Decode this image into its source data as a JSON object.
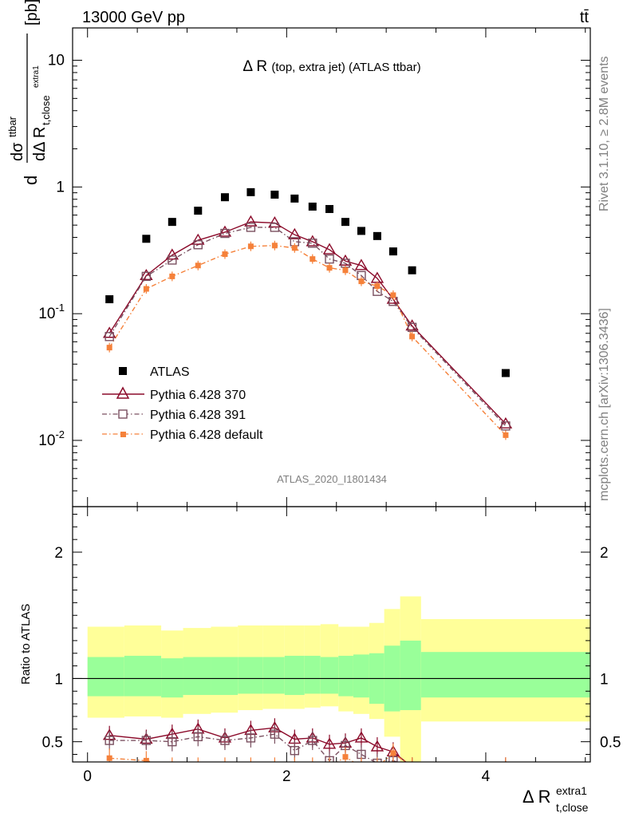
{
  "header": {
    "left": "13000 GeV pp",
    "right": "tt̄"
  },
  "side_labels": {
    "rivet": "Rivet 3.1.10, ≥ 2.8M events",
    "mcplots": "mcplots.cern.ch [arXiv:1306.3436]"
  },
  "colors": {
    "atlas": "#000000",
    "p370": "#8b0a2a",
    "p391": "#7a5060",
    "pdefault": "#f5813a",
    "band_yellow": "#ffff99",
    "band_green": "#99ff99"
  },
  "chart_data": [
    {
      "type": "scatter",
      "title_main": "Δ R",
      "title_sub": "(top, extra jet) (ATLAS ttbar)",
      "analysis_label": "ATLAS_2020_I1801434",
      "ylabel": "dσ^{ttbar} / dΔ R_{t,close}^{extra1} [pb]",
      "yscale": "log",
      "ylim": [
        0.003,
        18
      ],
      "xlim": [
        -0.15,
        5.05
      ],
      "y_tick_labels": [
        "10^{-2}",
        "10^{-1}",
        "1",
        "10"
      ],
      "legend": {
        "position": "bottom-left",
        "entries": [
          "ATLAS",
          "Pythia 6.428 370",
          "Pythia 6.428 391",
          "Pythia 6.428 default"
        ]
      },
      "x": [
        0.22,
        0.59,
        0.85,
        1.11,
        1.38,
        1.64,
        1.88,
        2.08,
        2.26,
        2.43,
        2.59,
        2.75,
        2.91,
        3.07,
        3.26,
        4.2
      ],
      "series": [
        {
          "name": "ATLAS",
          "marker": "square",
          "values": [
            0.13,
            0.39,
            0.53,
            0.65,
            0.83,
            0.91,
            0.87,
            0.81,
            0.7,
            0.67,
            0.53,
            0.45,
            0.41,
            0.31,
            0.22,
            0.034
          ]
        },
        {
          "name": "Pythia 6.428 370",
          "marker": "triangle",
          "line": "solid",
          "values": [
            0.07,
            0.2,
            0.29,
            0.38,
            0.44,
            0.53,
            0.52,
            0.42,
            0.37,
            0.32,
            0.26,
            0.24,
            0.19,
            0.13,
            0.08,
            0.0135
          ]
        },
        {
          "name": "Pythia 6.428 391",
          "marker": "open-square",
          "line": "dashdot",
          "values": [
            0.066,
            0.197,
            0.265,
            0.35,
            0.43,
            0.48,
            0.48,
            0.37,
            0.36,
            0.27,
            0.25,
            0.2,
            0.15,
            0.125,
            0.078,
            0.013
          ]
        },
        {
          "name": "Pythia 6.428 default",
          "marker": "filled-square",
          "line": "dashdot",
          "values": [
            0.054,
            0.157,
            0.197,
            0.24,
            0.295,
            0.34,
            0.345,
            0.33,
            0.27,
            0.23,
            0.22,
            0.18,
            0.165,
            0.14,
            0.066,
            0.011
          ]
        }
      ]
    },
    {
      "type": "scatter",
      "ylabel": "Ratio to ATLAS",
      "xlabel": "Δ R_{t,close}^{extra1}",
      "ylim": [
        0.34,
        2.36
      ],
      "xlim": [
        -0.15,
        5.05
      ],
      "x_tick_labels": [
        "0",
        "2",
        "4"
      ],
      "y_tick_labels": [
        "0.5",
        "1",
        "2"
      ],
      "bin_edges": [
        0.0,
        0.37,
        0.74,
        0.96,
        1.24,
        1.51,
        1.76,
        1.98,
        2.18,
        2.34,
        2.52,
        2.67,
        2.83,
        2.98,
        3.14,
        3.35,
        5.05
      ],
      "band_yellow": {
        "lo": [
          0.69,
          0.7,
          0.69,
          0.72,
          0.73,
          0.75,
          0.76,
          0.76,
          0.77,
          0.78,
          0.74,
          0.72,
          0.68,
          0.54,
          0.27,
          0.66
        ],
        "hi": [
          1.41,
          1.42,
          1.38,
          1.4,
          1.41,
          1.42,
          1.42,
          1.42,
          1.42,
          1.43,
          1.41,
          1.41,
          1.44,
          1.55,
          1.65,
          1.47
        ]
      },
      "band_green": {
        "lo": [
          0.86,
          0.86,
          0.85,
          0.87,
          0.87,
          0.88,
          0.88,
          0.87,
          0.88,
          0.88,
          0.86,
          0.85,
          0.8,
          0.74,
          0.75,
          0.85
        ],
        "hi": [
          1.17,
          1.18,
          1.16,
          1.17,
          1.17,
          1.17,
          1.17,
          1.18,
          1.18,
          1.17,
          1.18,
          1.19,
          1.2,
          1.26,
          1.3,
          1.21
        ]
      },
      "series": [
        {
          "name": "Pythia 6.428 370",
          "values": [
            0.55,
            0.52,
            0.56,
            0.6,
            0.53,
            0.59,
            0.61,
            0.52,
            0.53,
            0.48,
            0.49,
            0.53,
            0.46,
            0.42,
            0.3,
            0.3
          ]
        },
        {
          "name": "Pythia 6.428 391",
          "values": [
            0.51,
            0.51,
            0.5,
            0.54,
            0.51,
            0.53,
            0.56,
            0.43,
            0.51,
            0.35,
            0.47,
            0.4,
            0.33,
            0.35,
            0.3,
            0.3
          ]
        },
        {
          "name": "Pythia 6.428 default",
          "values": [
            0.37,
            0.35,
            0.3,
            0.3,
            0.3,
            0.3,
            0.3,
            0.3,
            0.3,
            0.3,
            0.38,
            0.3,
            0.3,
            0.41,
            0.3,
            0.3
          ]
        }
      ]
    }
  ]
}
